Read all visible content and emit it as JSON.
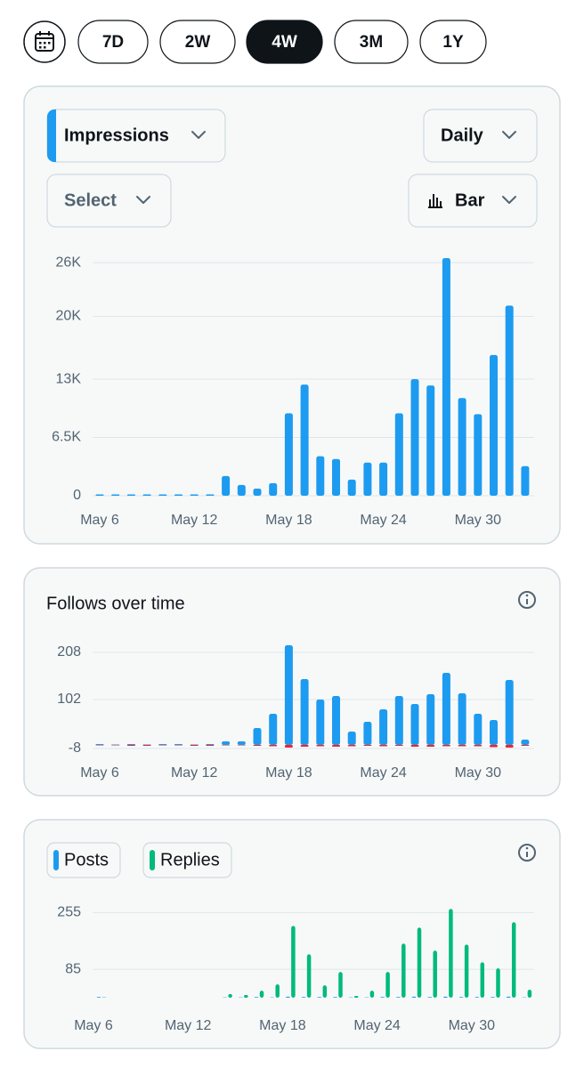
{
  "range_buttons": [
    "7D",
    "2W",
    "4W",
    "3M",
    "1Y"
  ],
  "selected_range_index": 2,
  "controls": {
    "metric": "Impressions",
    "interval": "Daily",
    "compare": "Select",
    "chart_style": "Bar"
  },
  "chart_data": [
    {
      "type": "bar",
      "categories": [
        "May 6",
        null,
        null,
        null,
        null,
        null,
        "May 12",
        null,
        null,
        null,
        null,
        null,
        "May 18",
        null,
        null,
        null,
        null,
        null,
        "May 24",
        null,
        null,
        null,
        null,
        null,
        "May 30",
        null,
        null,
        null
      ],
      "values": [
        150,
        150,
        150,
        150,
        150,
        150,
        150,
        150,
        2200,
        1200,
        800,
        1400,
        9200,
        12400,
        4400,
        4100,
        1800,
        3700,
        3700,
        9200,
        13000,
        12300,
        26500,
        10900,
        9100,
        15700,
        21200,
        3300
      ],
      "color": "#1d9bf0",
      "ylim": [
        0,
        27000
      ],
      "yticks": [
        0,
        {
          "value": 6500,
          "label": "6.5K"
        },
        {
          "value": 13000,
          "label": "13K"
        },
        {
          "value": 20000,
          "label": "20K"
        },
        {
          "value": 26000,
          "label": "26K"
        }
      ],
      "grid": true
    },
    {
      "type": "bar",
      "title": "Follows over time",
      "categories": [
        "May 6",
        null,
        null,
        null,
        null,
        null,
        "May 12",
        null,
        null,
        null,
        null,
        null,
        "May 18",
        null,
        null,
        null,
        null,
        null,
        "May 24",
        null,
        null,
        null,
        null,
        null,
        "May 30",
        null,
        null,
        null
      ],
      "series": [
        {
          "color": "#1d9bf0",
          "values": [
            2,
            1,
            2,
            1,
            2,
            2,
            1,
            2,
            8,
            8,
            38,
            70,
            224,
            148,
            102,
            110,
            30,
            52,
            80,
            110,
            92,
            114,
            162,
            116,
            70,
            56,
            146,
            12
          ]
        },
        {
          "color": "#f4212e",
          "values": [
            -1,
            -1,
            -2,
            -2,
            -1,
            -1,
            -2,
            -2,
            -1,
            -1,
            -2,
            -3,
            -6,
            -4,
            -3,
            -4,
            -3,
            -2,
            -3,
            -2,
            -4,
            -4,
            -3,
            -3,
            -3,
            -5,
            -6,
            -2
          ]
        }
      ],
      "ylim": [
        -12,
        230
      ],
      "yticks": [
        -8,
        102,
        208
      ],
      "grid": true
    },
    {
      "type": "bar",
      "categories": [
        "May 6",
        null,
        null,
        null,
        null,
        null,
        "May 12",
        null,
        null,
        null,
        null,
        null,
        "May 18",
        null,
        null,
        null,
        null,
        null,
        "May 24",
        null,
        null,
        null,
        null,
        null,
        "May 30",
        null,
        null,
        null
      ],
      "series": [
        {
          "name": "Posts",
          "color": "#1d9bf0",
          "values": [
            2,
            0,
            0,
            0,
            0,
            0,
            0,
            0,
            1,
            1,
            2,
            1,
            3,
            2,
            2,
            2,
            1,
            1,
            2,
            2,
            3,
            2,
            3,
            2,
            2,
            2,
            3,
            1
          ]
        },
        {
          "name": "Replies",
          "color": "#00ba7c",
          "values": [
            1,
            0,
            0,
            0,
            0,
            0,
            0,
            0,
            11,
            8,
            21,
            40,
            215,
            130,
            37,
            77,
            5,
            21,
            77,
            162,
            210,
            141,
            266,
            159,
            106,
            88,
            226,
            24
          ]
        }
      ],
      "ylim": [
        0,
        280
      ],
      "yticks": [
        85,
        255
      ],
      "grid": true,
      "grouped": true
    }
  ]
}
